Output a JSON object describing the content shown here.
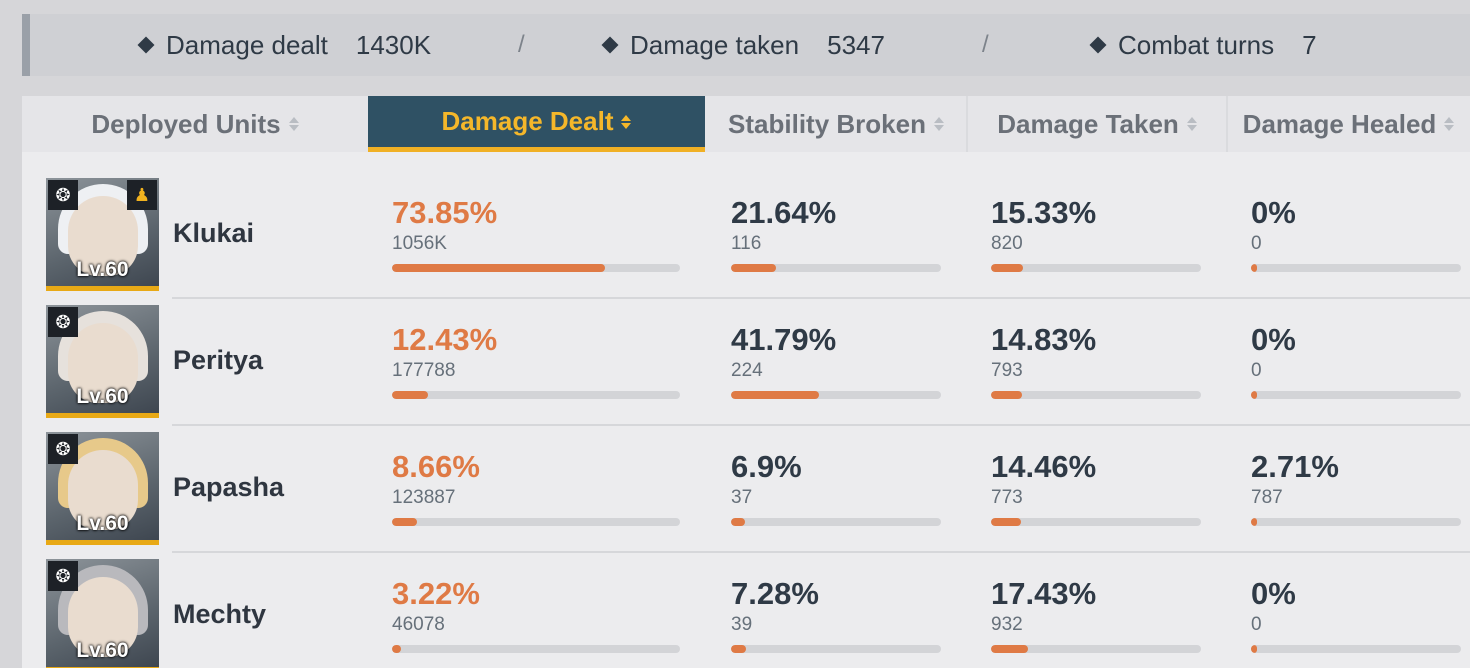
{
  "summary": {
    "damage_dealt_label": "Damage dealt",
    "damage_dealt_value": "1430K",
    "damage_taken_label": "Damage taken",
    "damage_taken_value": "5347",
    "combat_turns_label": "Combat turns",
    "combat_turns_value": "7",
    "separator": "/"
  },
  "columns": {
    "units": "Deployed Units",
    "damage_dealt": "Damage Dealt",
    "stability_broken": "Stability Broken",
    "damage_taken": "Damage Taken",
    "damage_healed": "Damage Healed"
  },
  "active_column": "damage_dealt",
  "colors": {
    "accent_orange": "#df7a45",
    "active_header_bg": "#2f5164",
    "active_header_text": "#f5b72a",
    "portrait_border": "#e8a916"
  },
  "rows": [
    {
      "name": "Klukai",
      "level": "Lv.60",
      "class_icon": "claw-class-icon",
      "extra_icon": "team-icon",
      "damage_dealt": {
        "pct": "73.85%",
        "raw": "1056K",
        "fill": 0.7385
      },
      "stability_broken": {
        "pct": "21.64%",
        "raw": "116",
        "fill": 0.2164
      },
      "damage_taken": {
        "pct": "15.33%",
        "raw": "820",
        "fill": 0.1533
      },
      "damage_healed": {
        "pct": "0%",
        "raw": "0",
        "fill": 0
      }
    },
    {
      "name": "Peritya",
      "level": "Lv.60",
      "class_icon": "claw-class-icon",
      "extra_icon": "",
      "damage_dealt": {
        "pct": "12.43%",
        "raw": "177788",
        "fill": 0.1243
      },
      "stability_broken": {
        "pct": "41.79%",
        "raw": "224",
        "fill": 0.4179
      },
      "damage_taken": {
        "pct": "14.83%",
        "raw": "793",
        "fill": 0.1483
      },
      "damage_healed": {
        "pct": "0%",
        "raw": "0",
        "fill": 0
      }
    },
    {
      "name": "Papasha",
      "level": "Lv.60",
      "class_icon": "claw-class-icon",
      "extra_icon": "",
      "damage_dealt": {
        "pct": "8.66%",
        "raw": "123887",
        "fill": 0.0866
      },
      "stability_broken": {
        "pct": "6.9%",
        "raw": "37",
        "fill": 0.069
      },
      "damage_taken": {
        "pct": "14.46%",
        "raw": "773",
        "fill": 0.1446
      },
      "damage_healed": {
        "pct": "2.71%",
        "raw": "787",
        "fill": 0.0271
      }
    },
    {
      "name": "Mechty",
      "level": "Lv.60",
      "class_icon": "support-class-icon",
      "extra_icon": "",
      "damage_dealt": {
        "pct": "3.22%",
        "raw": "46078",
        "fill": 0.0322
      },
      "stability_broken": {
        "pct": "7.28%",
        "raw": "39",
        "fill": 0.0728
      },
      "damage_taken": {
        "pct": "17.43%",
        "raw": "932",
        "fill": 0.1743
      },
      "damage_healed": {
        "pct": "0%",
        "raw": "0",
        "fill": 0
      }
    }
  ]
}
